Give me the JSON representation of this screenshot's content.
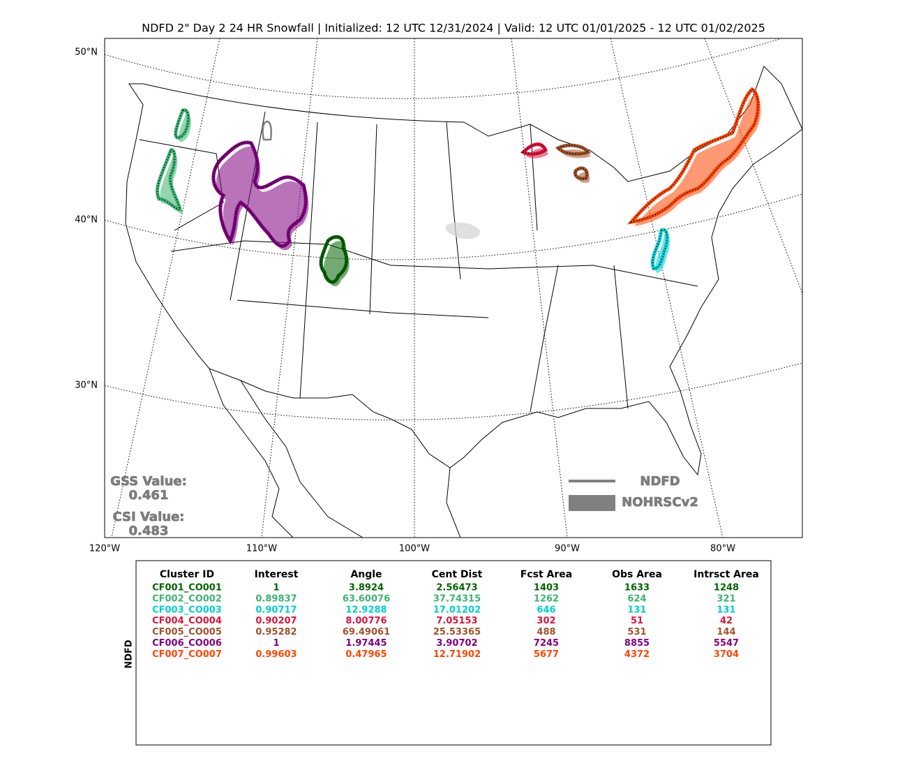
{
  "header": {
    "title": "NDFD 2\" Day 2 24 HR Snowfall | Initialized: 12 UTC 12/31/2024 | Valid: 12 UTC 01/01/2025 - 12 UTC 01/02/2025"
  },
  "map": {
    "lat_labels": [
      "50°N",
      "40°N",
      "30°N"
    ],
    "lon_labels": [
      "120°W",
      "110°W",
      "100°W",
      "90°W",
      "80°W"
    ],
    "scores": [
      {
        "label": "GSS Value:",
        "value": "0.461"
      },
      {
        "label": "CSI Value:",
        "value": "0.483"
      }
    ],
    "legend": {
      "forecast": "NDFD",
      "observed": "NOHRSCv2",
      "color": "#808080"
    }
  },
  "table": {
    "side_label": "NDFD",
    "columns": [
      "Cluster ID",
      "Interest",
      "Angle",
      "Cent Dist",
      "Fcst Area",
      "Obs Area",
      "Intrsct Area"
    ],
    "rows": [
      {
        "color": "#006400",
        "cells": [
          "CF001_CO001",
          1,
          3.8924,
          2.56473,
          1403,
          1633,
          1248
        ]
      },
      {
        "color": "#3cb371",
        "cells": [
          "CF002_CO002",
          0.89837,
          63.60076,
          37.74315,
          1262,
          624,
          321
        ]
      },
      {
        "color": "#00ced1",
        "cells": [
          "CF003_CO003",
          0.90717,
          12.9288,
          17.01202,
          646,
          131,
          131
        ]
      },
      {
        "color": "#dc143c",
        "cells": [
          "CF004_CO004",
          0.90207,
          8.00776,
          7.05153,
          302,
          51,
          42
        ]
      },
      {
        "color": "#a0522d",
        "cells": [
          "CF005_CO005",
          0.95282,
          69.49061,
          25.53365,
          488,
          531,
          144
        ]
      },
      {
        "color": "#800080",
        "cells": [
          "CF006_CO006",
          1,
          1.97445,
          3.90702,
          7245,
          8855,
          5547
        ]
      },
      {
        "color": "#ff4500",
        "cells": [
          "CF007_CO007",
          0.99603,
          0.47965,
          12.71902,
          5677,
          4372,
          3704
        ]
      }
    ]
  }
}
